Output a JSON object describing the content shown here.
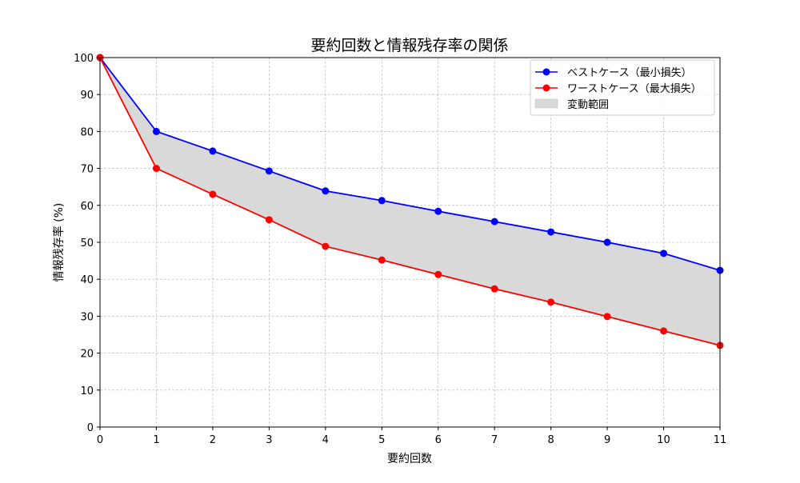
{
  "chart_data": {
    "type": "line",
    "title": "要約回数と情報残存率の関係",
    "xlabel": "要約回数",
    "ylabel": "情報残存率 (%)",
    "xlim": [
      0,
      11
    ],
    "ylim": [
      0,
      100
    ],
    "xticks": [
      0,
      1,
      2,
      3,
      4,
      5,
      6,
      7,
      8,
      9,
      10,
      11
    ],
    "yticks": [
      0,
      10,
      20,
      30,
      40,
      50,
      60,
      70,
      80,
      90,
      100
    ],
    "grid": true,
    "legend_position": "top-right",
    "x": [
      0,
      1,
      2,
      3,
      4,
      5,
      6,
      7,
      8,
      9,
      10,
      11
    ],
    "series": [
      {
        "name": "ベストケース（最小損失）",
        "color": "#0000ff",
        "values": [
          100,
          80,
          74.7,
          69.3,
          63.9,
          61.3,
          58.4,
          55.6,
          52.8,
          50.0,
          47.0,
          42.4
        ]
      },
      {
        "name": "ワーストケース（最大損失）",
        "color": "#ff0000",
        "values": [
          100,
          70,
          63.0,
          56.1,
          48.9,
          45.2,
          41.3,
          37.4,
          33.8,
          29.9,
          26.0,
          22.1
        ]
      }
    ],
    "fill": {
      "name": "変動範囲",
      "color": "#d9d9d9"
    }
  }
}
